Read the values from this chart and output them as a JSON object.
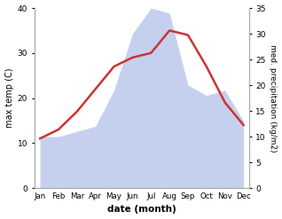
{
  "months": [
    "Jan",
    "Feb",
    "Mar",
    "Apr",
    "May",
    "Jun",
    "Jul",
    "Aug",
    "Sep",
    "Oct",
    "Nov",
    "Dec"
  ],
  "temp": [
    11,
    13,
    17,
    22,
    27,
    29,
    30,
    35,
    34,
    27,
    19,
    14
  ],
  "precip": [
    10,
    10,
    11,
    12,
    19,
    30,
    35,
    34,
    20,
    18,
    19,
    13
  ],
  "temp_color": "#cc3333",
  "precip_fill_color": "#c5d0ef",
  "temp_ylim": [
    0,
    40
  ],
  "precip_ylim": [
    0,
    35
  ],
  "temp_yticks": [
    0,
    10,
    20,
    30,
    40
  ],
  "precip_yticks": [
    0,
    5,
    10,
    15,
    20,
    25,
    30,
    35
  ],
  "xlabel": "date (month)",
  "ylabel_left": "max temp (C)",
  "ylabel_right": "med. precipitation (kg/m2)",
  "bg_color": "#ffffff",
  "figsize": [
    3.18,
    2.47
  ],
  "dpi": 100
}
